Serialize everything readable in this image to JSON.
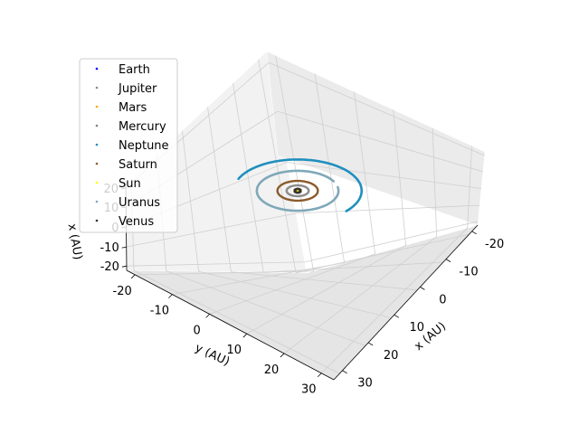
{
  "chart_data": {
    "type": "line",
    "projection": "3d",
    "title": "",
    "xlabel": "x (AU)",
    "ylabel": "y (AU)",
    "zlabel": "x (AU)",
    "x_ticks": [
      "-20",
      "-10",
      "0",
      "10",
      "20",
      "30"
    ],
    "y_ticks": [
      "-20",
      "-10",
      "0",
      "10",
      "20",
      "30"
    ],
    "z_ticks": [
      "-20",
      "-10",
      "0",
      "10",
      "20"
    ],
    "xlim": [
      -25,
      34
    ],
    "ylim": [
      -23,
      32
    ],
    "zlim": [
      -22,
      22
    ],
    "grid": true,
    "legend_position": "top-left",
    "series": [
      {
        "name": "Earth",
        "color": "#0000ff",
        "orbit_radius": 1.0,
        "turns": 1
      },
      {
        "name": "Jupiter",
        "color": "#8c8c8c",
        "orbit_radius": 5.2,
        "turns": 1
      },
      {
        "name": "Mars",
        "color": "#ffa500",
        "orbit_radius": 1.52,
        "turns": 1
      },
      {
        "name": "Mercury",
        "color": "#808080",
        "orbit_radius": 0.39,
        "turns": 1
      },
      {
        "name": "Neptune",
        "color": "#1f8fbf",
        "orbit_radius": 30.1,
        "turns": 0.55
      },
      {
        "name": "Saturn",
        "color": "#8b5a2b",
        "orbit_radius": 9.5,
        "turns": 1
      },
      {
        "name": "Sun",
        "color": "#ffff00",
        "orbit_radius": 0.0,
        "turns": 1
      },
      {
        "name": "Uranus",
        "color": "#7fa8b8",
        "orbit_radius": 19.2,
        "turns": 0.95
      },
      {
        "name": "Venus",
        "color": "#333333",
        "orbit_radius": 0.72,
        "turns": 1
      }
    ]
  }
}
